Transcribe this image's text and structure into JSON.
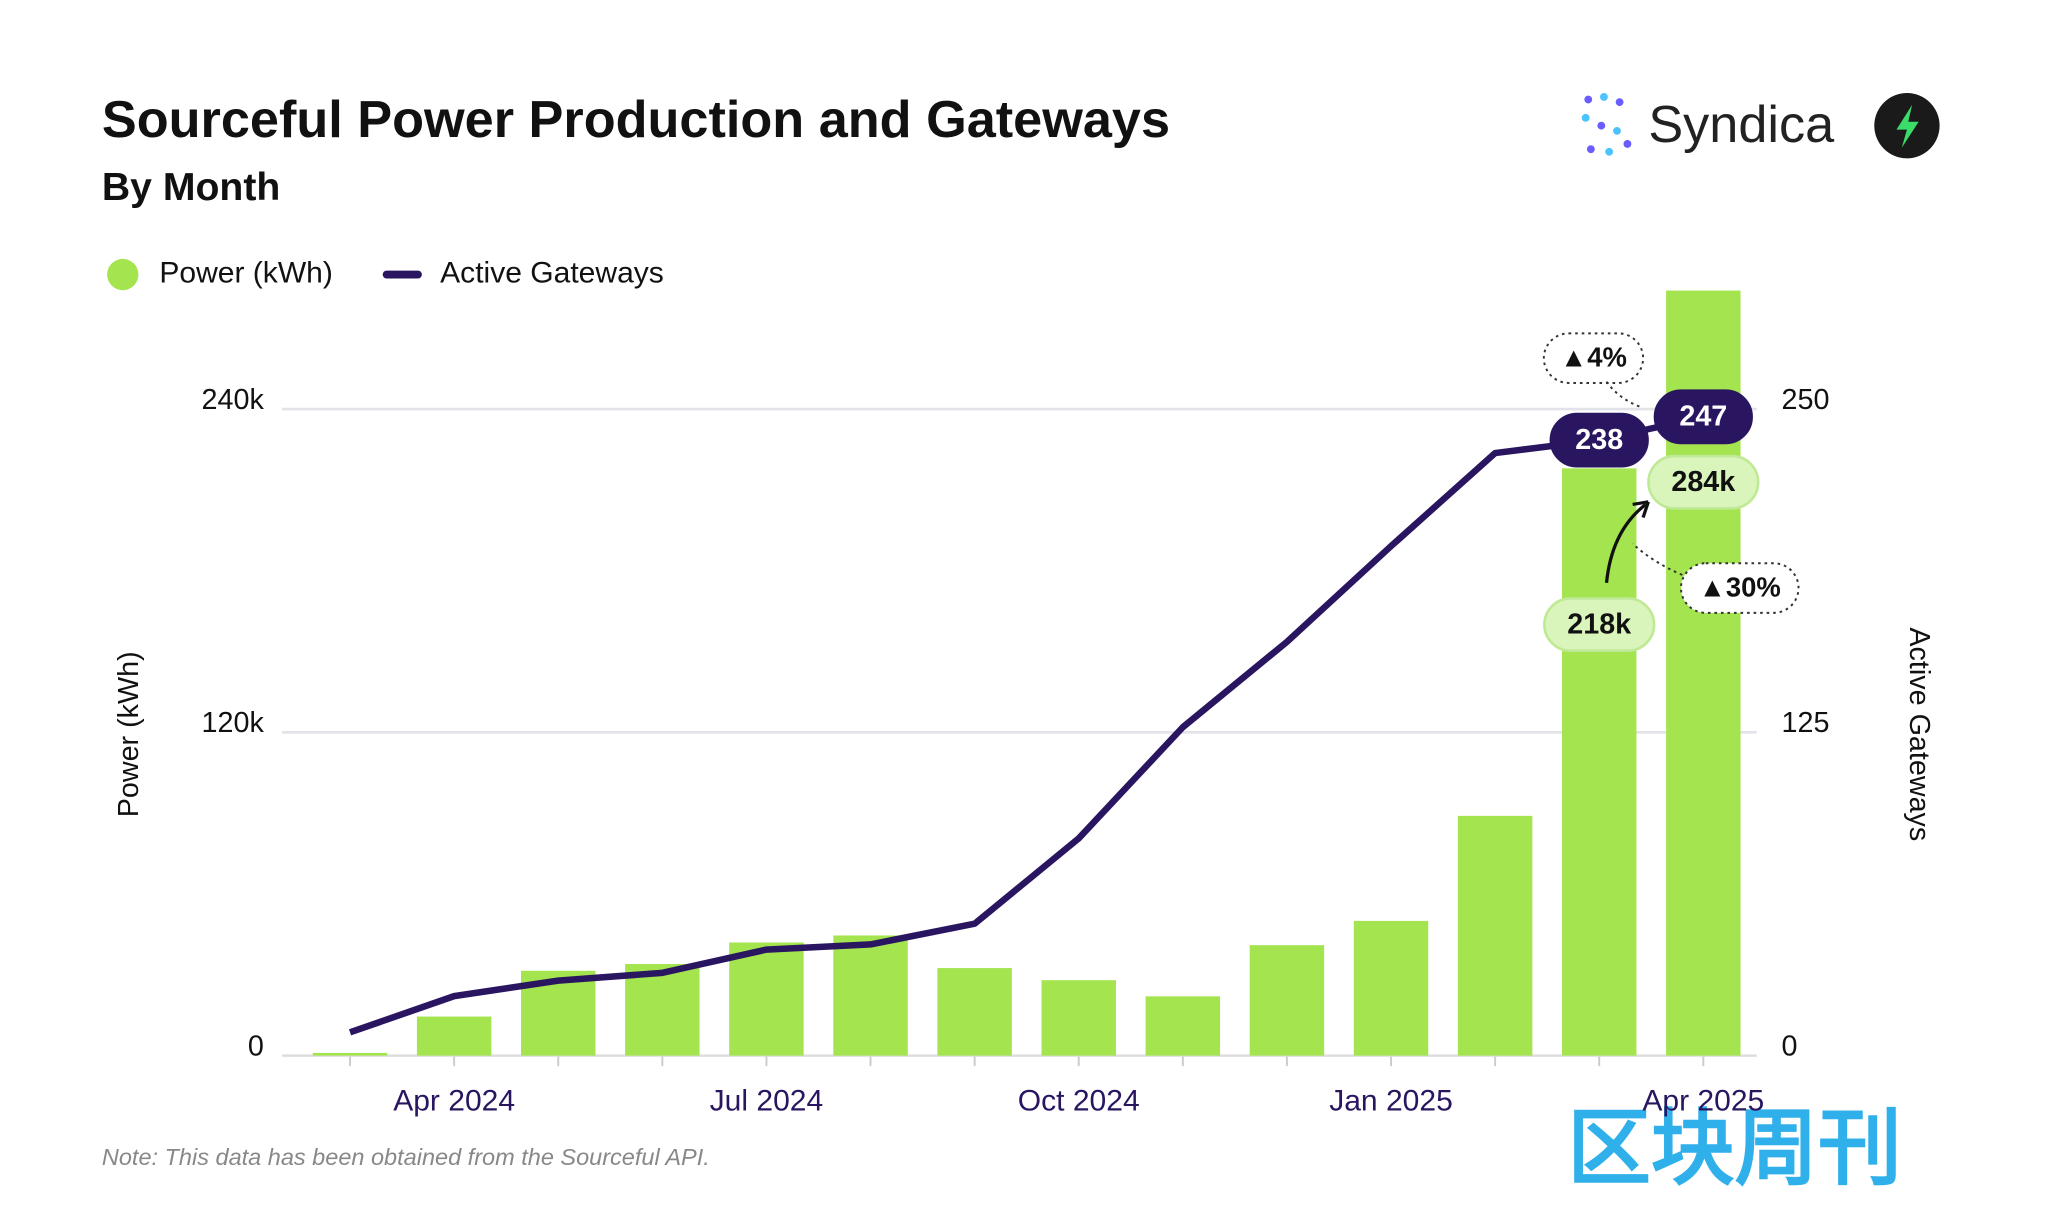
{
  "brand": "Syndica",
  "watermark": "区块周刊",
  "chart_data": {
    "type": "bar-line",
    "title": "Sourceful Power Production and Gateways",
    "subtitle": "By Month",
    "note": "Note: This data has been obtained from the Sourceful API.",
    "ylabel": "Power (kWh)",
    "y2label": "Active Gateways",
    "categories": [
      null,
      "Apr 2024",
      null,
      null,
      "Jul 2024",
      null,
      null,
      "Oct 2024",
      null,
      null,
      "Jan 2025",
      null,
      null,
      "Apr 2025"
    ],
    "series": [
      {
        "name": "Power (kWh)",
        "type": "bar",
        "color": "#a3e44f",
        "values": [
          1000,
          14500,
          31500,
          34000,
          42000,
          44600,
          32500,
          28000,
          22000,
          41000,
          50000,
          89000,
          218000,
          284000
        ],
        "value_labels": [
          null,
          null,
          null,
          null,
          null,
          null,
          null,
          null,
          null,
          null,
          null,
          null,
          "218k",
          "284k"
        ]
      },
      {
        "name": "Active Gateways",
        "type": "line",
        "axis": "y2",
        "color": "#2a1660",
        "values": [
          9,
          23,
          29,
          32,
          41,
          43,
          51,
          84,
          127,
          160,
          197,
          233,
          238,
          247
        ],
        "value_labels": [
          null,
          null,
          null,
          null,
          null,
          null,
          null,
          null,
          null,
          null,
          null,
          null,
          "238",
          "247"
        ]
      }
    ],
    "annotations": [
      "▲4%",
      "▲30%"
    ],
    "ylim": [
      0,
      240000
    ],
    "yticks": [
      0,
      {
        "value": 120000,
        "label": "120k"
      },
      {
        "value": 240000,
        "label": "240k"
      }
    ],
    "y2lim": [
      0,
      250
    ],
    "y2ticks": [
      0,
      125,
      250
    ],
    "grid": true,
    "legend": "top-left"
  }
}
